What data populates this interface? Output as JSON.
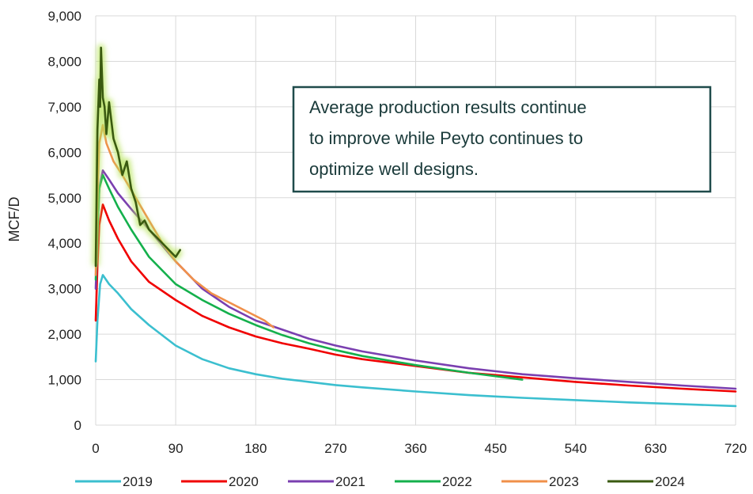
{
  "chart_data": {
    "type": "line",
    "title": "",
    "xlabel": "",
    "ylabel": "MCF/D",
    "xlim": [
      0,
      720
    ],
    "ylim": [
      0,
      9000
    ],
    "x_ticks": [
      0,
      90,
      180,
      270,
      360,
      450,
      540,
      630,
      720
    ],
    "x_tick_labels": [
      "0",
      "90",
      "180",
      "270",
      "360",
      "450",
      "540",
      "630",
      "720"
    ],
    "y_ticks": [
      0,
      1000,
      2000,
      3000,
      4000,
      5000,
      6000,
      7000,
      8000,
      9000
    ],
    "y_tick_labels": [
      "0",
      "1,000",
      "2,000",
      "3,000",
      "4,000",
      "5,000",
      "6,000",
      "7,000",
      "8,000",
      "9,000"
    ],
    "grid": "vertical and horizontal",
    "legend_position": "bottom",
    "annotation": {
      "lines": [
        "Average production results continue",
        "to improve while Peyto continues to",
        "optimize well designs."
      ],
      "position": "top-right"
    },
    "series": [
      {
        "name": "2019",
        "color": "#3bbfcf",
        "x": [
          0,
          2,
          5,
          8,
          15,
          25,
          40,
          60,
          90,
          120,
          150,
          180,
          210,
          240,
          270,
          300,
          360,
          420,
          480,
          540,
          600,
          660,
          720
        ],
        "y": [
          1400,
          2300,
          3100,
          3300,
          3100,
          2900,
          2550,
          2200,
          1750,
          1450,
          1250,
          1120,
          1020,
          950,
          880,
          830,
          740,
          660,
          600,
          550,
          500,
          460,
          420
        ]
      },
      {
        "name": "2020",
        "color": "#f00000",
        "x": [
          0,
          2,
          4,
          8,
          15,
          25,
          40,
          60,
          90,
          120,
          150,
          180,
          210,
          240,
          270,
          300,
          360,
          420,
          480,
          540,
          600,
          660,
          720
        ],
        "y": [
          2300,
          3500,
          4400,
          4850,
          4500,
          4100,
          3600,
          3150,
          2750,
          2400,
          2150,
          1950,
          1800,
          1680,
          1550,
          1450,
          1300,
          1150,
          1050,
          950,
          870,
          800,
          740
        ]
      },
      {
        "name": "2021",
        "color": "#7a3fb0",
        "x": [
          0,
          2,
          4,
          8,
          15,
          25,
          40,
          60,
          90,
          120,
          150,
          180,
          210,
          240,
          270,
          300,
          360,
          420,
          480,
          540,
          600,
          660,
          720
        ],
        "y": [
          3000,
          4200,
          5200,
          5600,
          5400,
          5100,
          4750,
          4300,
          3600,
          3000,
          2600,
          2300,
          2100,
          1900,
          1750,
          1620,
          1420,
          1250,
          1120,
          1030,
          950,
          870,
          800
        ]
      },
      {
        "name": "2022",
        "color": "#14b04c",
        "x": [
          0,
          2,
          4,
          8,
          15,
          25,
          40,
          60,
          90,
          120,
          150,
          180,
          210,
          240,
          270,
          300,
          360,
          420,
          480
        ],
        "y": [
          3200,
          4300,
          5200,
          5500,
          5200,
          4800,
          4300,
          3700,
          3100,
          2750,
          2450,
          2200,
          1980,
          1800,
          1650,
          1520,
          1320,
          1150,
          1000
        ]
      },
      {
        "name": "2023",
        "color": "#f0904a",
        "x": [
          0,
          2,
          4,
          8,
          12,
          20,
          30,
          45,
          60,
          75,
          90,
          110,
          130,
          150,
          170,
          180,
          190,
          200
        ],
        "y": [
          3300,
          5000,
          6200,
          6600,
          6200,
          5800,
          5500,
          5000,
          4500,
          4000,
          3600,
          3200,
          2900,
          2700,
          2500,
          2400,
          2300,
          2150
        ]
      },
      {
        "name": "2024",
        "color": "#3a5a10",
        "x": [
          0,
          2,
          4,
          5,
          6,
          8,
          10,
          12,
          15,
          20,
          25,
          30,
          35,
          40,
          45,
          50,
          55,
          60,
          70,
          80,
          90,
          95
        ],
        "y": [
          3500,
          6500,
          7600,
          7000,
          8300,
          7200,
          7000,
          6400,
          7100,
          6300,
          6000,
          5500,
          5800,
          5200,
          4900,
          4400,
          4500,
          4300,
          4100,
          3900,
          3700,
          3850
        ]
      }
    ]
  }
}
